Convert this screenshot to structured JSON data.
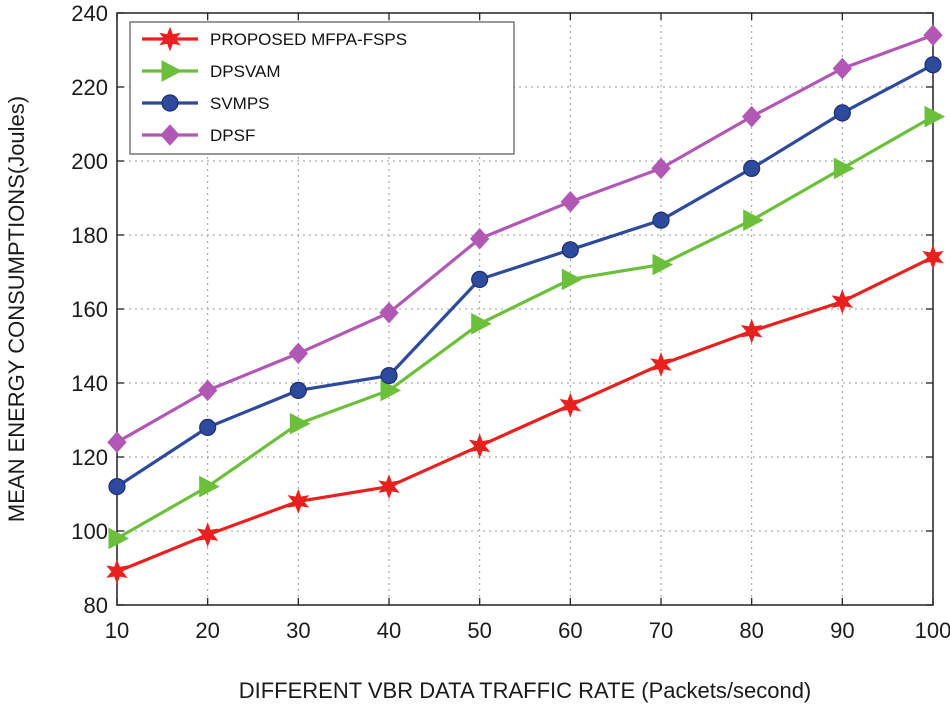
{
  "chart_data": {
    "type": "line",
    "title": "",
    "xlabel": "DIFFERENT VBR DATA TRAFFIC RATE (Packets/second)",
    "ylabel": "MEAN ENERGY CONSUMPTIONS(Joules)",
    "x": [
      10,
      20,
      30,
      40,
      50,
      60,
      70,
      80,
      90,
      100
    ],
    "xlim": [
      10,
      100
    ],
    "ylim": [
      80,
      240
    ],
    "xticks": [
      "10",
      "20",
      "30",
      "40",
      "50",
      "60",
      "70",
      "80",
      "90",
      "100"
    ],
    "yticks": [
      "80",
      "100",
      "120",
      "140",
      "160",
      "180",
      "200",
      "220",
      "240"
    ],
    "grid": true,
    "legend_position": "top-left",
    "series": [
      {
        "name": "PROPOSED MFPA-FSPS",
        "color": "#e8201e",
        "marker": "star",
        "values": [
          89,
          99,
          108,
          112,
          123,
          134,
          145,
          154,
          162,
          174
        ]
      },
      {
        "name": "DPSVAM",
        "color": "#6cbf3a",
        "marker": "triangle-right",
        "values": [
          98,
          112,
          129,
          138,
          156,
          168,
          172,
          184,
          198,
          212
        ]
      },
      {
        "name": "SVMPS",
        "color": "#2e4a9c",
        "marker": "circle",
        "values": [
          112,
          128,
          138,
          142,
          168,
          176,
          184,
          198,
          213,
          226
        ]
      },
      {
        "name": "DPSF",
        "color": "#b158b5",
        "marker": "diamond",
        "values": [
          124,
          138,
          148,
          159,
          179,
          189,
          198,
          212,
          225,
          234
        ]
      }
    ]
  }
}
